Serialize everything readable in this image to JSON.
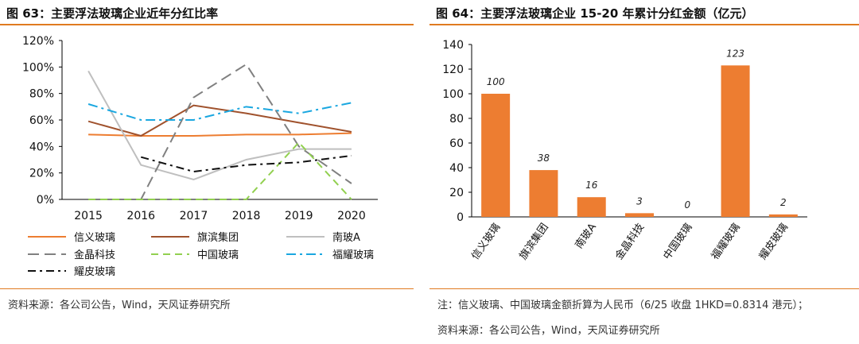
{
  "left": {
    "title": "图 63：主要浮法玻璃企业近年分红比率",
    "source": "资料来源：各公司公告，Wind，天风证券研究所"
  },
  "right": {
    "title": "图 64：主要浮法玻璃企业 15-20 年累计分红金额（亿元）",
    "note": "注：信义玻璃、中国玻璃金额折算为人民币（6/25 收盘 1HKD=0.8314 港元）；",
    "source": "资料来源：各公司公告，Wind，天风证券研究所"
  },
  "chart_data": [
    {
      "type": "line",
      "title": "图 63：主要浮法玻璃企业近年分红比率",
      "x": [
        "2015",
        "2016",
        "2017",
        "2018",
        "2019",
        "2020"
      ],
      "ylim": [
        0,
        120
      ],
      "yticks": [
        "0%",
        "20%",
        "40%",
        "60%",
        "80%",
        "100%",
        "120%"
      ],
      "legend": "bottom",
      "series": [
        {
          "name": "信义玻璃",
          "color": "#ed7d31",
          "dash": "",
          "values": [
            49,
            48,
            48,
            49,
            49,
            50
          ]
        },
        {
          "name": "旗滨集团",
          "color": "#a0522d",
          "dash": "",
          "values": [
            59,
            48,
            71,
            65,
            58,
            51
          ]
        },
        {
          "name": "南玻A",
          "color": "#bfbfbf",
          "dash": "",
          "values": [
            97,
            26,
            15,
            30,
            38,
            38
          ]
        },
        {
          "name": "金晶科技",
          "color": "#808080",
          "dash": "14,7",
          "values": [
            0,
            0,
            77,
            102,
            40,
            12
          ]
        },
        {
          "name": "中国玻璃",
          "color": "#92d050",
          "dash": "9,6",
          "values": [
            0,
            0,
            0,
            0,
            43,
            0
          ]
        },
        {
          "name": "福耀玻璃",
          "color": "#1aa7e0",
          "dash": "12,5,3,5",
          "values": [
            72,
            60,
            60,
            70,
            65,
            73
          ]
        },
        {
          "name": "耀皮玻璃",
          "color": "#111111",
          "dash": "10,5,3,5",
          "values": [
            null,
            32,
            21,
            26,
            28,
            33
          ]
        }
      ]
    },
    {
      "type": "bar",
      "title": "图 64：主要浮法玻璃企业 15-20 年累计分红金额（亿元）",
      "categories": [
        "信义玻璃",
        "旗滨集团",
        "南玻A",
        "金晶科技",
        "中国玻璃",
        "福耀玻璃",
        "耀皮玻璃"
      ],
      "values": [
        100,
        38,
        16,
        3,
        0,
        123,
        2
      ],
      "labels": [
        "100",
        "38",
        "16",
        "3",
        "0",
        "123",
        "2"
      ],
      "ylim": [
        0,
        140
      ],
      "yticks": [
        "0",
        "20",
        "40",
        "60",
        "80",
        "100",
        "120",
        "140"
      ],
      "color": "#ed7d31"
    }
  ]
}
